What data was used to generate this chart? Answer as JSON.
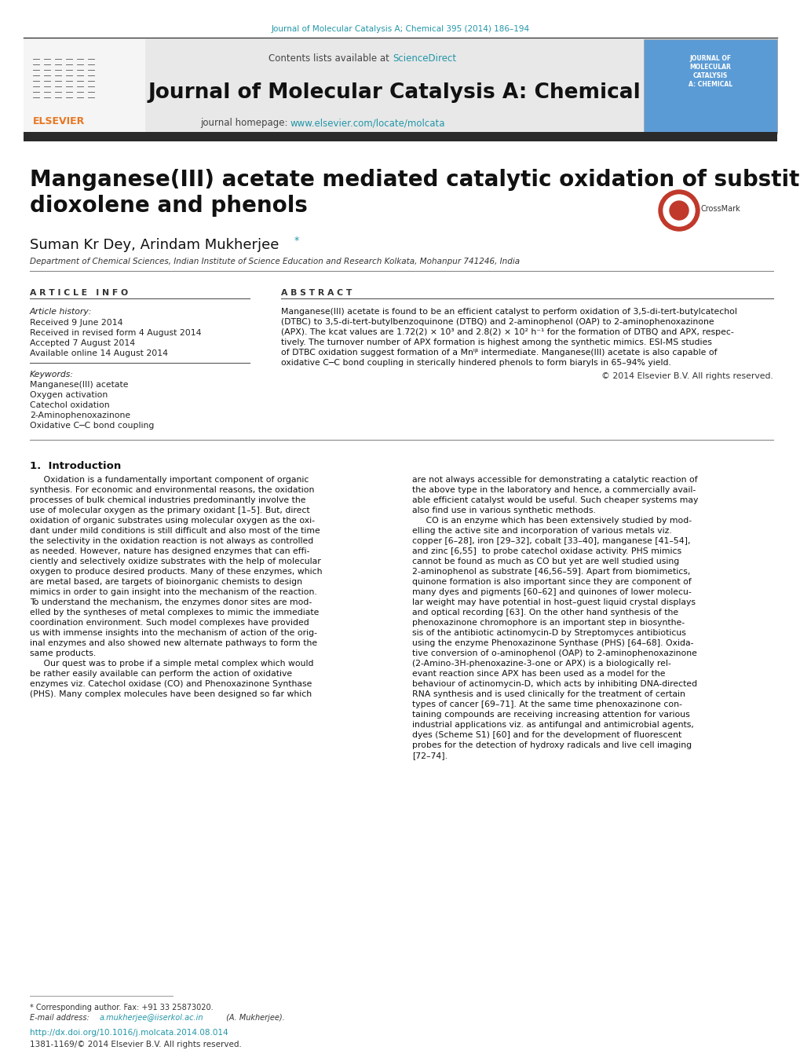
{
  "bg_color": "#ffffff",
  "top_ref": "Journal of Molecular Catalysis A; Chemical 395 (2014) 186–194",
  "top_ref_color": "#2196a8",
  "header_bg": "#e5e5e5",
  "journal_name": "Journal of Molecular Catalysis A: Chemical",
  "journal_homepage_plain": "journal homepage: ",
  "journal_homepage_url": "www.elsevier.com/locate/molcata",
  "link_color": "#2196a8",
  "dark_bar": "#2a2a2a",
  "elsevier_color": "#e87722",
  "cover_bg": "#5b9bd5",
  "title": "Manganese(III) acetate mediated catalytic oxidation of substituted\ndioxolene and phenols",
  "authors_plain": "Suman Kr Dey, Arindam Mukherjee",
  "affiliation": "Department of Chemical Sciences, Indian Institute of Science Education and Research Kolkata, Mohanpur 741246, India",
  "article_info_hdr": "A R T I C L E   I N F O",
  "abstract_hdr": "A B S T R A C T",
  "art_history_lbl": "Article history:",
  "received": "Received 9 June 2014",
  "received_rev": "Received in revised form 4 August 2014",
  "accepted": "Accepted 7 August 2014",
  "available": "Available online 14 August 2014",
  "kw_lbl": "Keywords:",
  "keywords": [
    "Manganese(III) acetate",
    "Oxygen activation",
    "Catechol oxidation",
    "2-Aminophenoxazinone",
    "Oxidative C─C bond coupling"
  ],
  "abstract_lines": [
    "Manganese(III) acetate is found to be an efficient catalyst to perform oxidation of 3,5-di-tert-butylcatechol",
    "(DTBC) to 3,5-di-tert-butylbenzoquinone (DTBQ) and 2-aminophenol (OAP) to 2-aminophenoxazinone",
    "(APX). The kcat values are 1.72(2) × 10³ and 2.8(2) × 10² h⁻¹ for the formation of DTBQ and APX, respec-",
    "tively. The turnover number of APX formation is highest among the synthetic mimics. ESI-MS studies",
    "of DTBC oxidation suggest formation of a Mnᴵᵝ intermediate. Manganese(III) acetate is also capable of",
    "oxidative C─C bond coupling in sterically hindered phenols to form biaryls in 65–94% yield."
  ],
  "copyright": "© 2014 Elsevier B.V. All rights reserved.",
  "intro_hdr": "1.  Introduction",
  "intro_c1_lines": [
    "     Oxidation is a fundamentally important component of organic",
    "synthesis. For economic and environmental reasons, the oxidation",
    "processes of bulk chemical industries predominantly involve the",
    "use of molecular oxygen as the primary oxidant [1–5]. But, direct",
    "oxidation of organic substrates using molecular oxygen as the oxi-",
    "dant under mild conditions is still difficult and also most of the time",
    "the selectivity in the oxidation reaction is not always as controlled",
    "as needed. However, nature has designed enzymes that can effi-",
    "ciently and selectively oxidize substrates with the help of molecular",
    "oxygen to produce desired products. Many of these enzymes, which",
    "are metal based, are targets of bioinorganic chemists to design",
    "mimics in order to gain insight into the mechanism of the reaction.",
    "To understand the mechanism, the enzymes donor sites are mod-",
    "elled by the syntheses of metal complexes to mimic the immediate",
    "coordination environment. Such model complexes have provided",
    "us with immense insights into the mechanism of action of the orig-",
    "inal enzymes and also showed new alternate pathways to form the",
    "same products.",
    "     Our quest was to probe if a simple metal complex which would",
    "be rather easily available can perform the action of oxidative",
    "enzymes viz. Catechol oxidase (CO) and Phenoxazinone Synthase",
    "(PHS). Many complex molecules have been designed so far which"
  ],
  "intro_c2_lines": [
    "are not always accessible for demonstrating a catalytic reaction of",
    "the above type in the laboratory and hence, a commercially avail-",
    "able efficient catalyst would be useful. Such cheaper systems may",
    "also find use in various synthetic methods.",
    "     CO is an enzyme which has been extensively studied by mod-",
    "elling the active site and incorporation of various metals viz.",
    "copper [6–28], iron [29–32], cobalt [33–40], manganese [41–54],",
    "and zinc [6,55]  to probe catechol oxidase activity. PHS mimics",
    "cannot be found as much as CO but yet are well studied using",
    "2-aminophenol as substrate [46,56–59]. Apart from biomimetics,",
    "quinone formation is also important since they are component of",
    "many dyes and pigments [60–62] and quinones of lower molecu-",
    "lar weight may have potential in host–guest liquid crystal displays",
    "and optical recording [63]. On the other hand synthesis of the",
    "phenoxazinone chromophore is an important step in biosynthe-",
    "sis of the antibiotic actinomycin-D by Streptomyces antibioticus",
    "using the enzyme Phenoxazinone Synthase (PHS) [64–68]. Oxida-",
    "tive conversion of o-aminophenol (OAP) to 2-aminophenoxazinone",
    "(2-Amino-3H-phenoxazine-3-one or APX) is a biologically rel-",
    "evant reaction since APX has been used as a model for the",
    "behaviour of actinomycin-D, which acts by inhibiting DNA-directed",
    "RNA synthesis and is used clinically for the treatment of certain",
    "types of cancer [69–71]. At the same time phenoxazinone con-",
    "taining compounds are receiving increasing attention for various",
    "industrial applications viz. as antifungal and antimicrobial agents,",
    "dyes (Scheme S1) [60] and for the development of fluorescent",
    "probes for the detection of hydroxy radicals and live cell imaging",
    "[72–74]."
  ],
  "footer_note": "* Corresponding author. Fax: +91 33 25873020.",
  "footer_email_plain": "E-mail address: ",
  "footer_email_link": "a.mukherjee@iiserkol.ac.in",
  "footer_email_suffix": " (A. Mukherjee).",
  "footer_doi": "http://dx.doi.org/10.1016/j.molcata.2014.08.014",
  "footer_issn": "1381-1169/© 2014 Elsevier B.V. All rights reserved."
}
